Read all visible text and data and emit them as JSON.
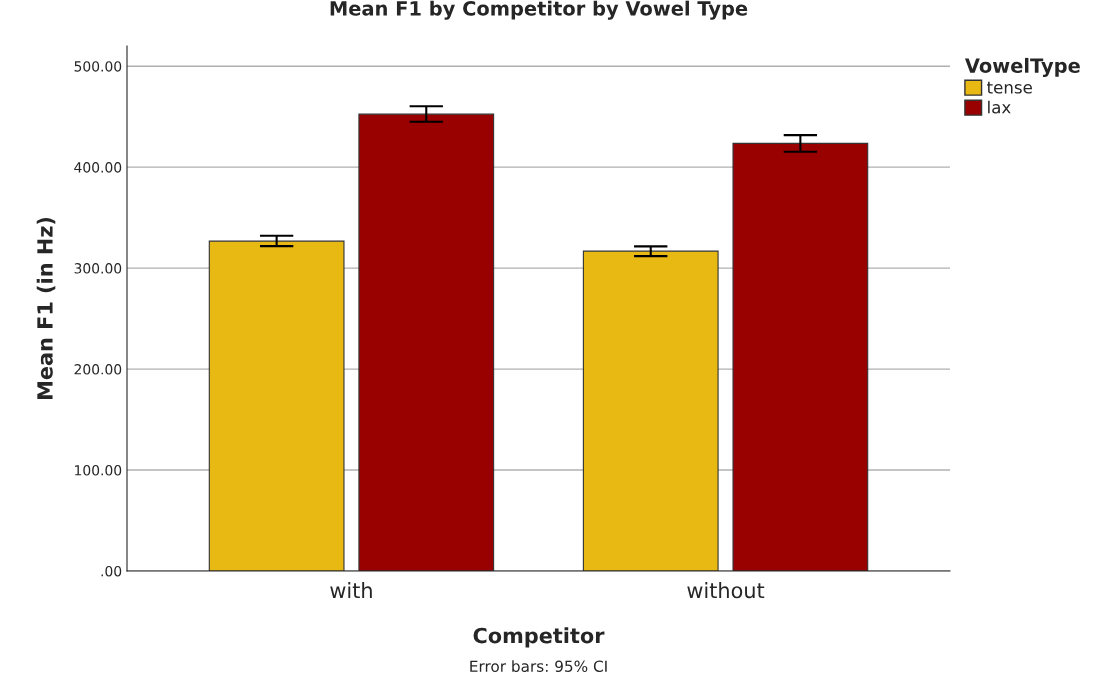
{
  "chart_data": {
    "type": "bar",
    "title": "Mean F1 by Competitor by Vowel Type",
    "xlabel": "Competitor",
    "ylabel": "Mean F1 (in Hz)",
    "legend_title": "VowelType",
    "categories": [
      "with",
      "without"
    ],
    "series": [
      {
        "name": "tense",
        "color": "#e9b913",
        "values": [
          326.7,
          316.8
        ],
        "errors": [
          [
            321.8,
            332.0
          ],
          [
            311.9,
            321.5
          ]
        ]
      },
      {
        "name": "lax",
        "color": "#990000",
        "values": [
          452.5,
          423.5
        ],
        "errors": [
          [
            444.9,
            460.4
          ],
          [
            415.2,
            431.7
          ]
        ]
      }
    ],
    "ylim": [
      0,
      520
    ],
    "yticks": [
      {
        "value": 0,
        "label": ".00"
      },
      {
        "value": 100,
        "label": "100.00"
      },
      {
        "value": 200,
        "label": "200.00"
      },
      {
        "value": 300,
        "label": "300.00"
      },
      {
        "value": 400,
        "label": "400.00"
      },
      {
        "value": 500,
        "label": "500.00"
      }
    ],
    "grid": "y",
    "legend": "top right",
    "annotations": [
      "Error bars: 95% CI"
    ]
  }
}
